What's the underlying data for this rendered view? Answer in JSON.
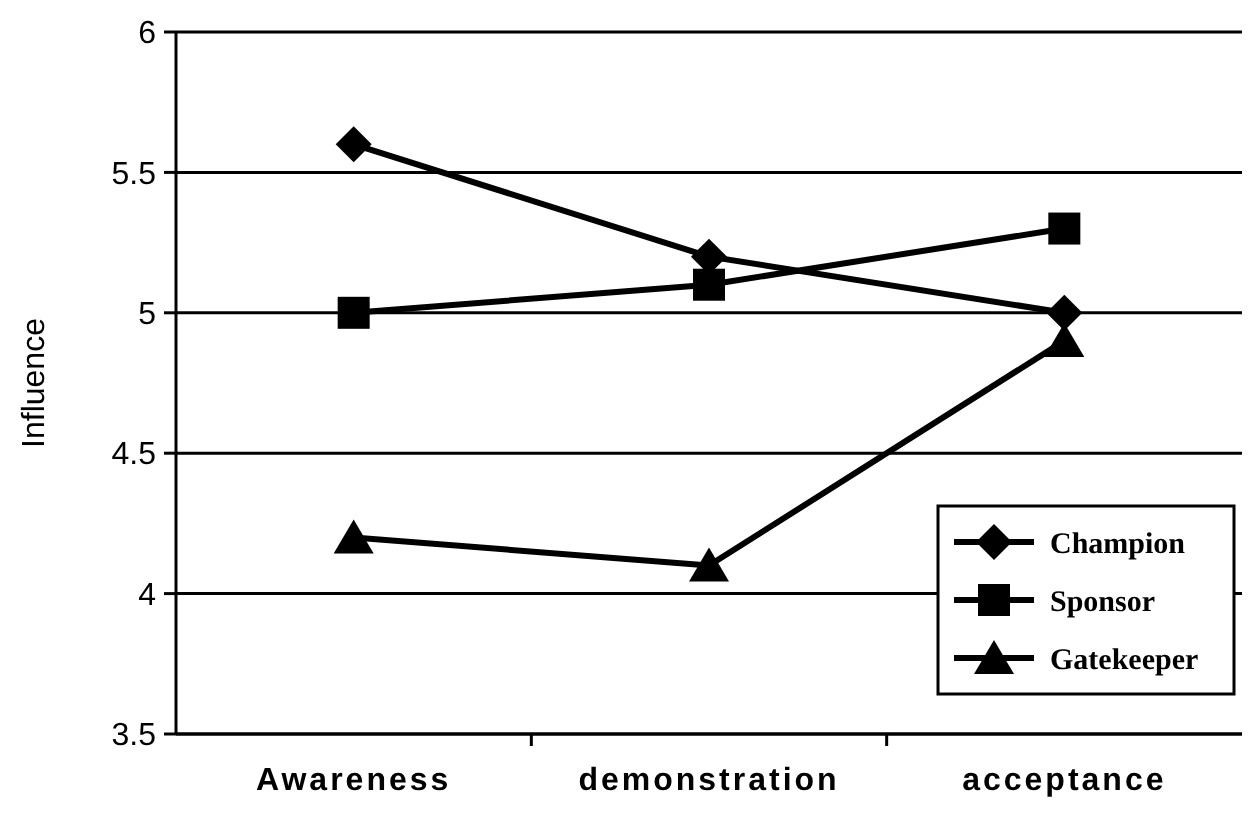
{
  "chart_data": {
    "type": "line",
    "ylabel": "Influence",
    "categories": [
      "Awareness",
      "demonstration",
      "acceptance"
    ],
    "series": [
      {
        "name": "Champion",
        "color": "#000000",
        "marker": "diamond",
        "values": [
          5.6,
          5.2,
          5.0
        ]
      },
      {
        "name": "Sponsor",
        "color": "#000000",
        "marker": "square",
        "values": [
          5.0,
          5.1,
          5.3
        ]
      },
      {
        "name": "Gatekeeper",
        "color": "#000000",
        "marker": "triangle",
        "values": [
          4.2,
          4.1,
          4.9
        ]
      }
    ],
    "ylim": [
      3.5,
      6
    ],
    "yticks": [
      3.5,
      4,
      4.5,
      5,
      5.5,
      6
    ],
    "grid": "y",
    "legend": "bottom right",
    "line_style": "solid"
  }
}
